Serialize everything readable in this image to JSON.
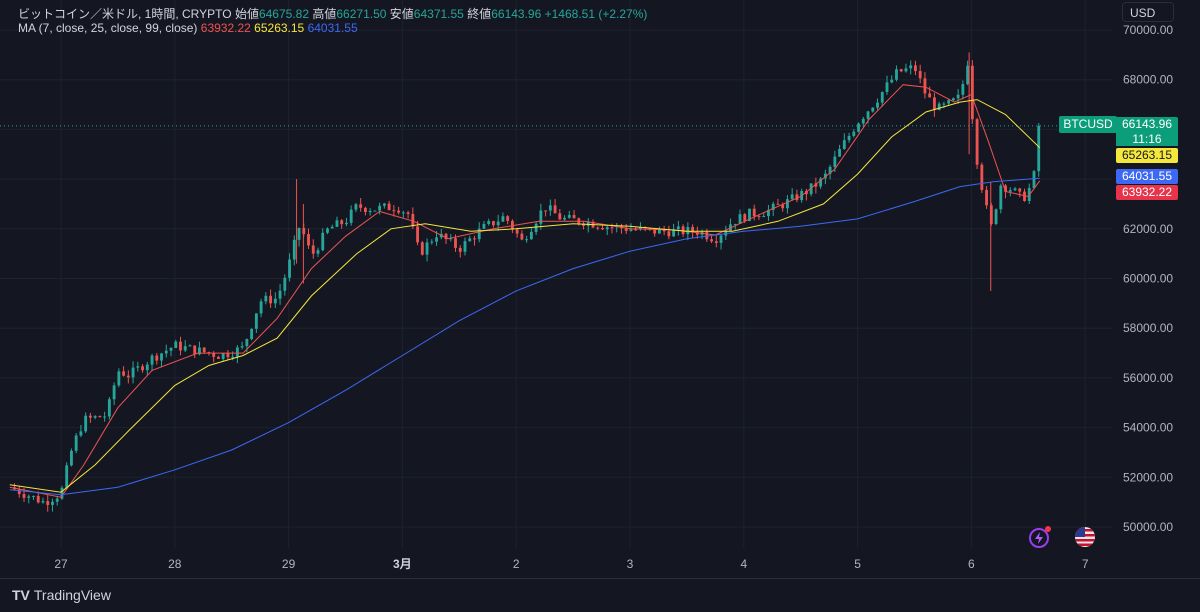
{
  "header": {
    "symbol_title": "ビットコイン／米ドル, 1時間, CRYPTO",
    "open_label": "始値",
    "open_value": "64675.82",
    "high_label": "高値",
    "high_value": "66271.50",
    "low_label": "安値",
    "low_value": "64371.55",
    "close_label": "終値",
    "close_value": "66143.96",
    "change": "+1468.51 (+2.27%)",
    "ma_label": "MA (7, close, 25, close, 99, close)",
    "ma7_value": "63932.22",
    "ma25_value": "65263.15",
    "ma99_value": "64031.55"
  },
  "currency_button": "USD",
  "price_scale": {
    "symbol_tag": "BTCUSD",
    "last_price": "66143.96",
    "countdown": "11:16",
    "ma25_tag": "65263.15",
    "ma99_tag": "64031.55",
    "ma7_tag": "63932.22"
  },
  "footer": {
    "brand": "TradingView",
    "logo_mark": "TV"
  },
  "icons": {
    "bolt": "lightning-icon",
    "flag": "us-flag-icon"
  },
  "colors": {
    "up": "#26a69a",
    "down": "#ef5350",
    "ma7": "#ef5350",
    "ma25": "#f5e73c",
    "ma99": "#3d68f4",
    "background": "#141722"
  },
  "chart_data": {
    "type": "candlestick",
    "timeframe": "1時間",
    "ylim": [
      49500,
      70500
    ],
    "y_ticks": [
      50000,
      52000,
      54000,
      56000,
      58000,
      60000,
      62000,
      64000,
      66000,
      68000,
      70000
    ],
    "y_tick_labels": [
      "50000.00",
      "52000.00",
      "54000.00",
      "56000.00",
      "58000.00",
      "60000.00",
      "62000.00",
      "64000.00",
      "66000.00",
      "68000.00",
      "70000.00"
    ],
    "x_tick_labels": [
      "27",
      "28",
      "29",
      "3月",
      "2",
      "3",
      "4",
      "5",
      "6",
      "7"
    ],
    "x_tick_positions_days": [
      0,
      1,
      2,
      3,
      4,
      5,
      6,
      7,
      8,
      9
    ],
    "close_path": [
      {
        "t": -0.45,
        "v": 51600
      },
      {
        "t": -0.3,
        "v": 51300
      },
      {
        "t": -0.15,
        "v": 51000
      },
      {
        "t": 0.0,
        "v": 51350
      },
      {
        "t": 0.1,
        "v": 53200
      },
      {
        "t": 0.2,
        "v": 54300
      },
      {
        "t": 0.4,
        "v": 54500
      },
      {
        "t": 0.5,
        "v": 56300
      },
      {
        "t": 0.6,
        "v": 56100
      },
      {
        "t": 0.8,
        "v": 56800
      },
      {
        "t": 1.0,
        "v": 57300
      },
      {
        "t": 1.2,
        "v": 57100
      },
      {
        "t": 1.4,
        "v": 56900
      },
      {
        "t": 1.6,
        "v": 57200
      },
      {
        "t": 1.75,
        "v": 59100
      },
      {
        "t": 1.9,
        "v": 59200
      },
      {
        "t": 2.0,
        "v": 60500
      },
      {
        "t": 2.1,
        "v": 62200
      },
      {
        "t": 2.2,
        "v": 60900
      },
      {
        "t": 2.35,
        "v": 62000
      },
      {
        "t": 2.5,
        "v": 62300
      },
      {
        "t": 2.6,
        "v": 62900
      },
      {
        "t": 2.75,
        "v": 62800
      },
      {
        "t": 2.95,
        "v": 62900
      },
      {
        "t": 3.05,
        "v": 62600
      },
      {
        "t": 3.15,
        "v": 61000
      },
      {
        "t": 3.3,
        "v": 61800
      },
      {
        "t": 3.5,
        "v": 61200
      },
      {
        "t": 3.7,
        "v": 62000
      },
      {
        "t": 3.9,
        "v": 62500
      },
      {
        "t": 4.05,
        "v": 61500
      },
      {
        "t": 4.25,
        "v": 62900
      },
      {
        "t": 4.4,
        "v": 62400
      },
      {
        "t": 4.6,
        "v": 62300
      },
      {
        "t": 4.8,
        "v": 62100
      },
      {
        "t": 5.0,
        "v": 62000
      },
      {
        "t": 5.2,
        "v": 61900
      },
      {
        "t": 5.4,
        "v": 61900
      },
      {
        "t": 5.6,
        "v": 61900
      },
      {
        "t": 5.75,
        "v": 61600
      },
      {
        "t": 5.9,
        "v": 62300
      },
      {
        "t": 6.05,
        "v": 62600
      },
      {
        "t": 6.2,
        "v": 62700
      },
      {
        "t": 6.35,
        "v": 63000
      },
      {
        "t": 6.55,
        "v": 63500
      },
      {
        "t": 6.7,
        "v": 64000
      },
      {
        "t": 6.85,
        "v": 65200
      },
      {
        "t": 7.0,
        "v": 66300
      },
      {
        "t": 7.15,
        "v": 67100
      },
      {
        "t": 7.35,
        "v": 68300
      },
      {
        "t": 7.5,
        "v": 68500
      },
      {
        "t": 7.6,
        "v": 67400
      },
      {
        "t": 7.7,
        "v": 66800
      },
      {
        "t": 7.8,
        "v": 67000
      },
      {
        "t": 7.9,
        "v": 67300
      },
      {
        "t": 7.97,
        "v": 68800
      },
      {
        "t": 8.03,
        "v": 65300
      },
      {
        "t": 8.12,
        "v": 63000
      },
      {
        "t": 8.18,
        "v": 62000
      },
      {
        "t": 8.25,
        "v": 63800
      },
      {
        "t": 8.35,
        "v": 63600
      },
      {
        "t": 8.45,
        "v": 63200
      },
      {
        "t": 8.5,
        "v": 63500
      },
      {
        "t": 8.57,
        "v": 64400
      },
      {
        "t": 8.6,
        "v": 66143.96
      }
    ],
    "series": [
      {
        "name": "MA 7",
        "values": [
          {
            "t": -0.45,
            "v": 51600
          },
          {
            "t": 0.0,
            "v": 51200
          },
          {
            "t": 0.2,
            "v": 52500
          },
          {
            "t": 0.5,
            "v": 54800
          },
          {
            "t": 0.8,
            "v": 56300
          },
          {
            "t": 1.2,
            "v": 57000
          },
          {
            "t": 1.6,
            "v": 57000
          },
          {
            "t": 1.9,
            "v": 58400
          },
          {
            "t": 2.2,
            "v": 60400
          },
          {
            "t": 2.5,
            "v": 61700
          },
          {
            "t": 2.8,
            "v": 62700
          },
          {
            "t": 3.1,
            "v": 62300
          },
          {
            "t": 3.4,
            "v": 61600
          },
          {
            "t": 3.8,
            "v": 62000
          },
          {
            "t": 4.2,
            "v": 62300
          },
          {
            "t": 4.6,
            "v": 62300
          },
          {
            "t": 5.0,
            "v": 62000
          },
          {
            "t": 5.4,
            "v": 61950
          },
          {
            "t": 5.75,
            "v": 61750
          },
          {
            "t": 6.1,
            "v": 62500
          },
          {
            "t": 6.5,
            "v": 63300
          },
          {
            "t": 6.8,
            "v": 64400
          },
          {
            "t": 7.1,
            "v": 66400
          },
          {
            "t": 7.4,
            "v": 67800
          },
          {
            "t": 7.6,
            "v": 67700
          },
          {
            "t": 7.85,
            "v": 67100
          },
          {
            "t": 8.0,
            "v": 67400
          },
          {
            "t": 8.15,
            "v": 65500
          },
          {
            "t": 8.3,
            "v": 63500
          },
          {
            "t": 8.5,
            "v": 63300
          },
          {
            "t": 8.6,
            "v": 63932.22
          }
        ]
      },
      {
        "name": "MA 25",
        "values": [
          {
            "t": -0.45,
            "v": 51700
          },
          {
            "t": 0.0,
            "v": 51400
          },
          {
            "t": 0.3,
            "v": 52500
          },
          {
            "t": 0.6,
            "v": 53900
          },
          {
            "t": 1.0,
            "v": 55700
          },
          {
            "t": 1.3,
            "v": 56500
          },
          {
            "t": 1.6,
            "v": 56900
          },
          {
            "t": 1.9,
            "v": 57600
          },
          {
            "t": 2.2,
            "v": 59300
          },
          {
            "t": 2.6,
            "v": 61000
          },
          {
            "t": 2.9,
            "v": 62000
          },
          {
            "t": 3.2,
            "v": 62200
          },
          {
            "t": 3.6,
            "v": 61900
          },
          {
            "t": 4.0,
            "v": 62000
          },
          {
            "t": 4.5,
            "v": 62200
          },
          {
            "t": 5.0,
            "v": 62100
          },
          {
            "t": 5.5,
            "v": 61900
          },
          {
            "t": 5.9,
            "v": 61900
          },
          {
            "t": 6.3,
            "v": 62300
          },
          {
            "t": 6.7,
            "v": 63000
          },
          {
            "t": 7.0,
            "v": 64200
          },
          {
            "t": 7.3,
            "v": 65700
          },
          {
            "t": 7.6,
            "v": 66700
          },
          {
            "t": 7.9,
            "v": 67100
          },
          {
            "t": 8.05,
            "v": 67200
          },
          {
            "t": 8.3,
            "v": 66600
          },
          {
            "t": 8.6,
            "v": 65263.15
          }
        ]
      },
      {
        "name": "MA 99",
        "values": [
          {
            "t": -0.45,
            "v": 51500
          },
          {
            "t": 0.0,
            "v": 51300
          },
          {
            "t": 0.5,
            "v": 51600
          },
          {
            "t": 1.0,
            "v": 52300
          },
          {
            "t": 1.5,
            "v": 53100
          },
          {
            "t": 2.0,
            "v": 54200
          },
          {
            "t": 2.5,
            "v": 55500
          },
          {
            "t": 3.0,
            "v": 56900
          },
          {
            "t": 3.5,
            "v": 58300
          },
          {
            "t": 4.0,
            "v": 59500
          },
          {
            "t": 4.5,
            "v": 60400
          },
          {
            "t": 5.0,
            "v": 61100
          },
          {
            "t": 5.5,
            "v": 61600
          },
          {
            "t": 6.0,
            "v": 61900
          },
          {
            "t": 6.5,
            "v": 62100
          },
          {
            "t": 7.0,
            "v": 62400
          },
          {
            "t": 7.5,
            "v": 63100
          },
          {
            "t": 7.9,
            "v": 63700
          },
          {
            "t": 8.2,
            "v": 63900
          },
          {
            "t": 8.6,
            "v": 64031.55
          }
        ]
      }
    ],
    "grid": true,
    "last_price_line": 66143.96
  }
}
